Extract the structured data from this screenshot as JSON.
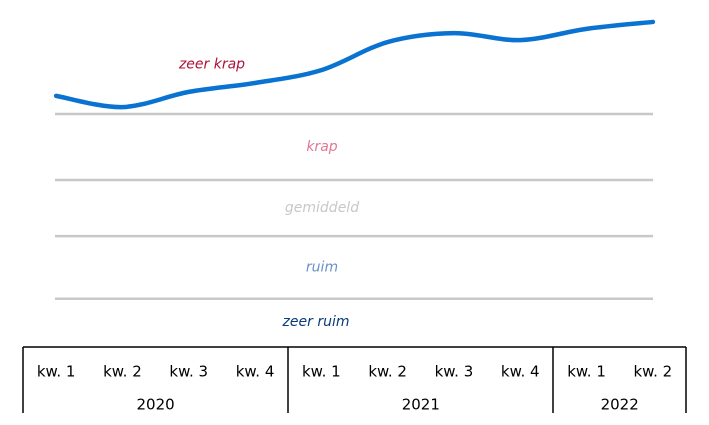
{
  "chart_data": {
    "type": "line",
    "groups": [
      {
        "label": "2020",
        "categories": [
          "kw. 1",
          "kw. 2",
          "kw. 3",
          "kw. 4"
        ]
      },
      {
        "label": "2021",
        "categories": [
          "kw. 1",
          "kw. 2",
          "kw. 3",
          "kw. 4"
        ]
      },
      {
        "label": "2022",
        "categories": [
          "kw. 1",
          "kw. 2"
        ]
      }
    ],
    "series": [
      {
        "color": "#0a73d1",
        "values": [
          75.5,
          72.1,
          76.7,
          79.4,
          83.3,
          91.8,
          94.5,
          92.4,
          95.8,
          97.9
        ]
      }
    ],
    "ylim": [
      0,
      100
    ],
    "thresholds": [
      70,
      50,
      33,
      14
    ],
    "zones": [
      {
        "label": "zeer krap",
        "color": "#b0103a"
      },
      {
        "label": "krap",
        "color": "#e07896"
      },
      {
        "label": "gemiddeld",
        "color": "#c8c8c8"
      },
      {
        "label": "ruim",
        "color": "#6a90cc"
      },
      {
        "label": "zeer ruim",
        "color": "#0a3a7a"
      }
    ]
  }
}
